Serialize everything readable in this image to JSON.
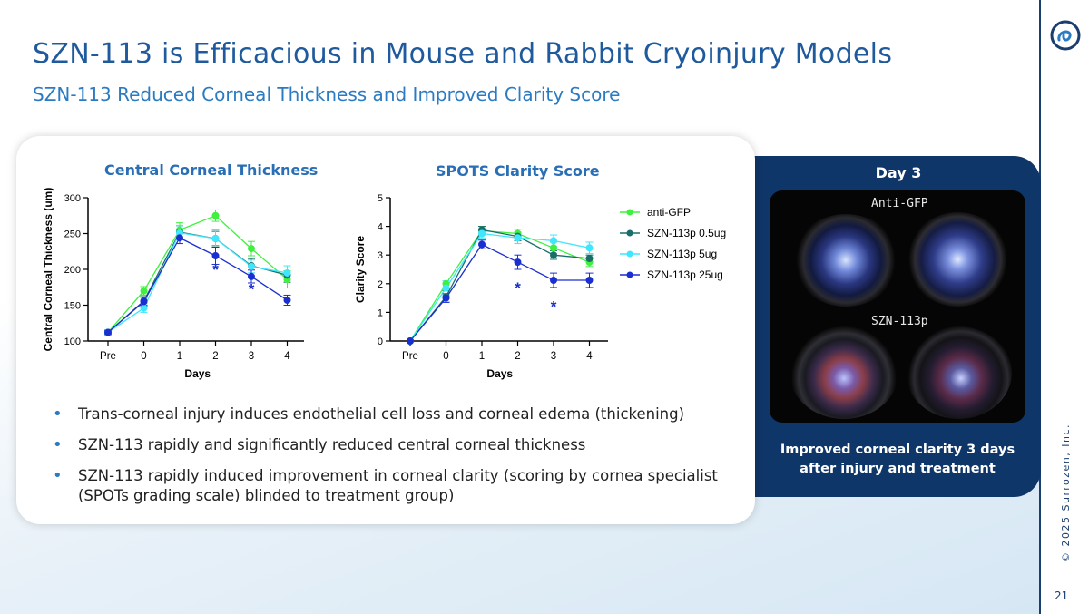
{
  "slide": {
    "title": "SZN-113 is Efficacious in Mouse and Rabbit Cryoinjury Models",
    "subtitle": "SZN-113 Reduced Corneal Thickness and Improved Clarity Score",
    "page_number": "21",
    "copyright": "© 2025 Surrozen, Inc."
  },
  "colors": {
    "title": "#1f5a9c",
    "accent": "#2a7bc2",
    "panel": "#0f3668",
    "anti_gfp": "#3ff03f",
    "szn_05": "#1a6e6a",
    "szn_5": "#3fe6ff",
    "szn_25": "#1a2fd1"
  },
  "bullets": [
    "Trans-corneal injury induces endothelial cell loss and corneal edema (thickening)",
    "SZN-113 rapidly and significantly reduced central corneal thickness",
    "SZN-113 rapidly induced improvement in corneal clarity (scoring by cornea specialist (SPOTs grading scale) blinded to treatment group)"
  ],
  "right_panel": {
    "day_label": "Day 3",
    "top_label": "Anti-GFP",
    "bottom_label": "SZN-113p",
    "caption": "Improved corneal clarity 3 days after injury and treatment"
  },
  "chart_data": [
    {
      "type": "line",
      "title": "Central Corneal Thickness",
      "xlabel": "Days",
      "ylabel": "Central Corneal Thickness (um)",
      "categories": [
        "Pre",
        "0",
        "1",
        "2",
        "3",
        "4"
      ],
      "ylim": [
        100,
        300
      ],
      "yticks": [
        100,
        150,
        200,
        250,
        300
      ],
      "significance": [
        {
          "category": "2",
          "value": 205,
          "label": "*"
        },
        {
          "category": "3",
          "value": 178,
          "label": "*"
        }
      ],
      "series": [
        {
          "name": "anti-GFP",
          "color": "#3ff03f",
          "values": [
            112,
            170,
            255,
            275,
            229,
            186
          ],
          "errors": [
            3,
            6,
            10,
            8,
            10,
            12
          ]
        },
        {
          "name": "SZN-113p 0.5ug",
          "color": "#1a6e6a",
          "values": [
            112,
            156,
            252,
            243,
            205,
            192
          ],
          "errors": [
            3,
            6,
            9,
            10,
            10,
            10
          ]
        },
        {
          "name": "SZN-113p 5ug",
          "color": "#3fe6ff",
          "values": [
            112,
            146,
            251,
            243,
            204,
            195
          ],
          "errors": [
            3,
            6,
            10,
            12,
            9,
            10
          ]
        },
        {
          "name": "SZN-113p 25ug",
          "color": "#1a2fd1",
          "values": [
            112,
            155,
            244,
            219,
            190,
            157
          ],
          "errors": [
            3,
            6,
            8,
            12,
            9,
            7
          ]
        }
      ]
    },
    {
      "type": "line",
      "title": "SPOTS Clarity Score",
      "xlabel": "Days",
      "ylabel": "Clarity Score",
      "categories": [
        "Pre",
        "0",
        "1",
        "2",
        "3",
        "4"
      ],
      "ylim": [
        0,
        5
      ],
      "yticks": [
        0,
        1,
        2,
        3,
        4,
        5
      ],
      "legend": "right",
      "significance": [
        {
          "category": "2",
          "value": 2.0,
          "label": "*"
        },
        {
          "category": "3",
          "value": 1.35,
          "label": "*"
        }
      ],
      "series": [
        {
          "name": "anti-GFP",
          "color": "#3ff03f",
          "values": [
            0,
            2.0,
            3.85,
            3.75,
            3.25,
            2.75
          ],
          "errors": [
            0,
            0.2,
            0.15,
            0.15,
            0.2,
            0.15
          ]
        },
        {
          "name": "SZN-113p 0.5ug",
          "color": "#1a6e6a",
          "values": [
            0,
            1.55,
            3.88,
            3.65,
            3.0,
            2.88
          ],
          "errors": [
            0,
            0.2,
            0.12,
            0.15,
            0.15,
            0.12
          ]
        },
        {
          "name": "SZN-113p 5ug",
          "color": "#3fe6ff",
          "values": [
            0,
            1.85,
            3.75,
            3.6,
            3.5,
            3.25
          ],
          "errors": [
            0,
            0.25,
            0.15,
            0.2,
            0.2,
            0.2
          ]
        },
        {
          "name": "SZN-113p 25ug",
          "color": "#1a2fd1",
          "values": [
            0,
            1.5,
            3.37,
            2.75,
            2.12,
            2.12
          ],
          "errors": [
            0,
            0.15,
            0.15,
            0.25,
            0.25,
            0.25
          ]
        }
      ]
    }
  ]
}
